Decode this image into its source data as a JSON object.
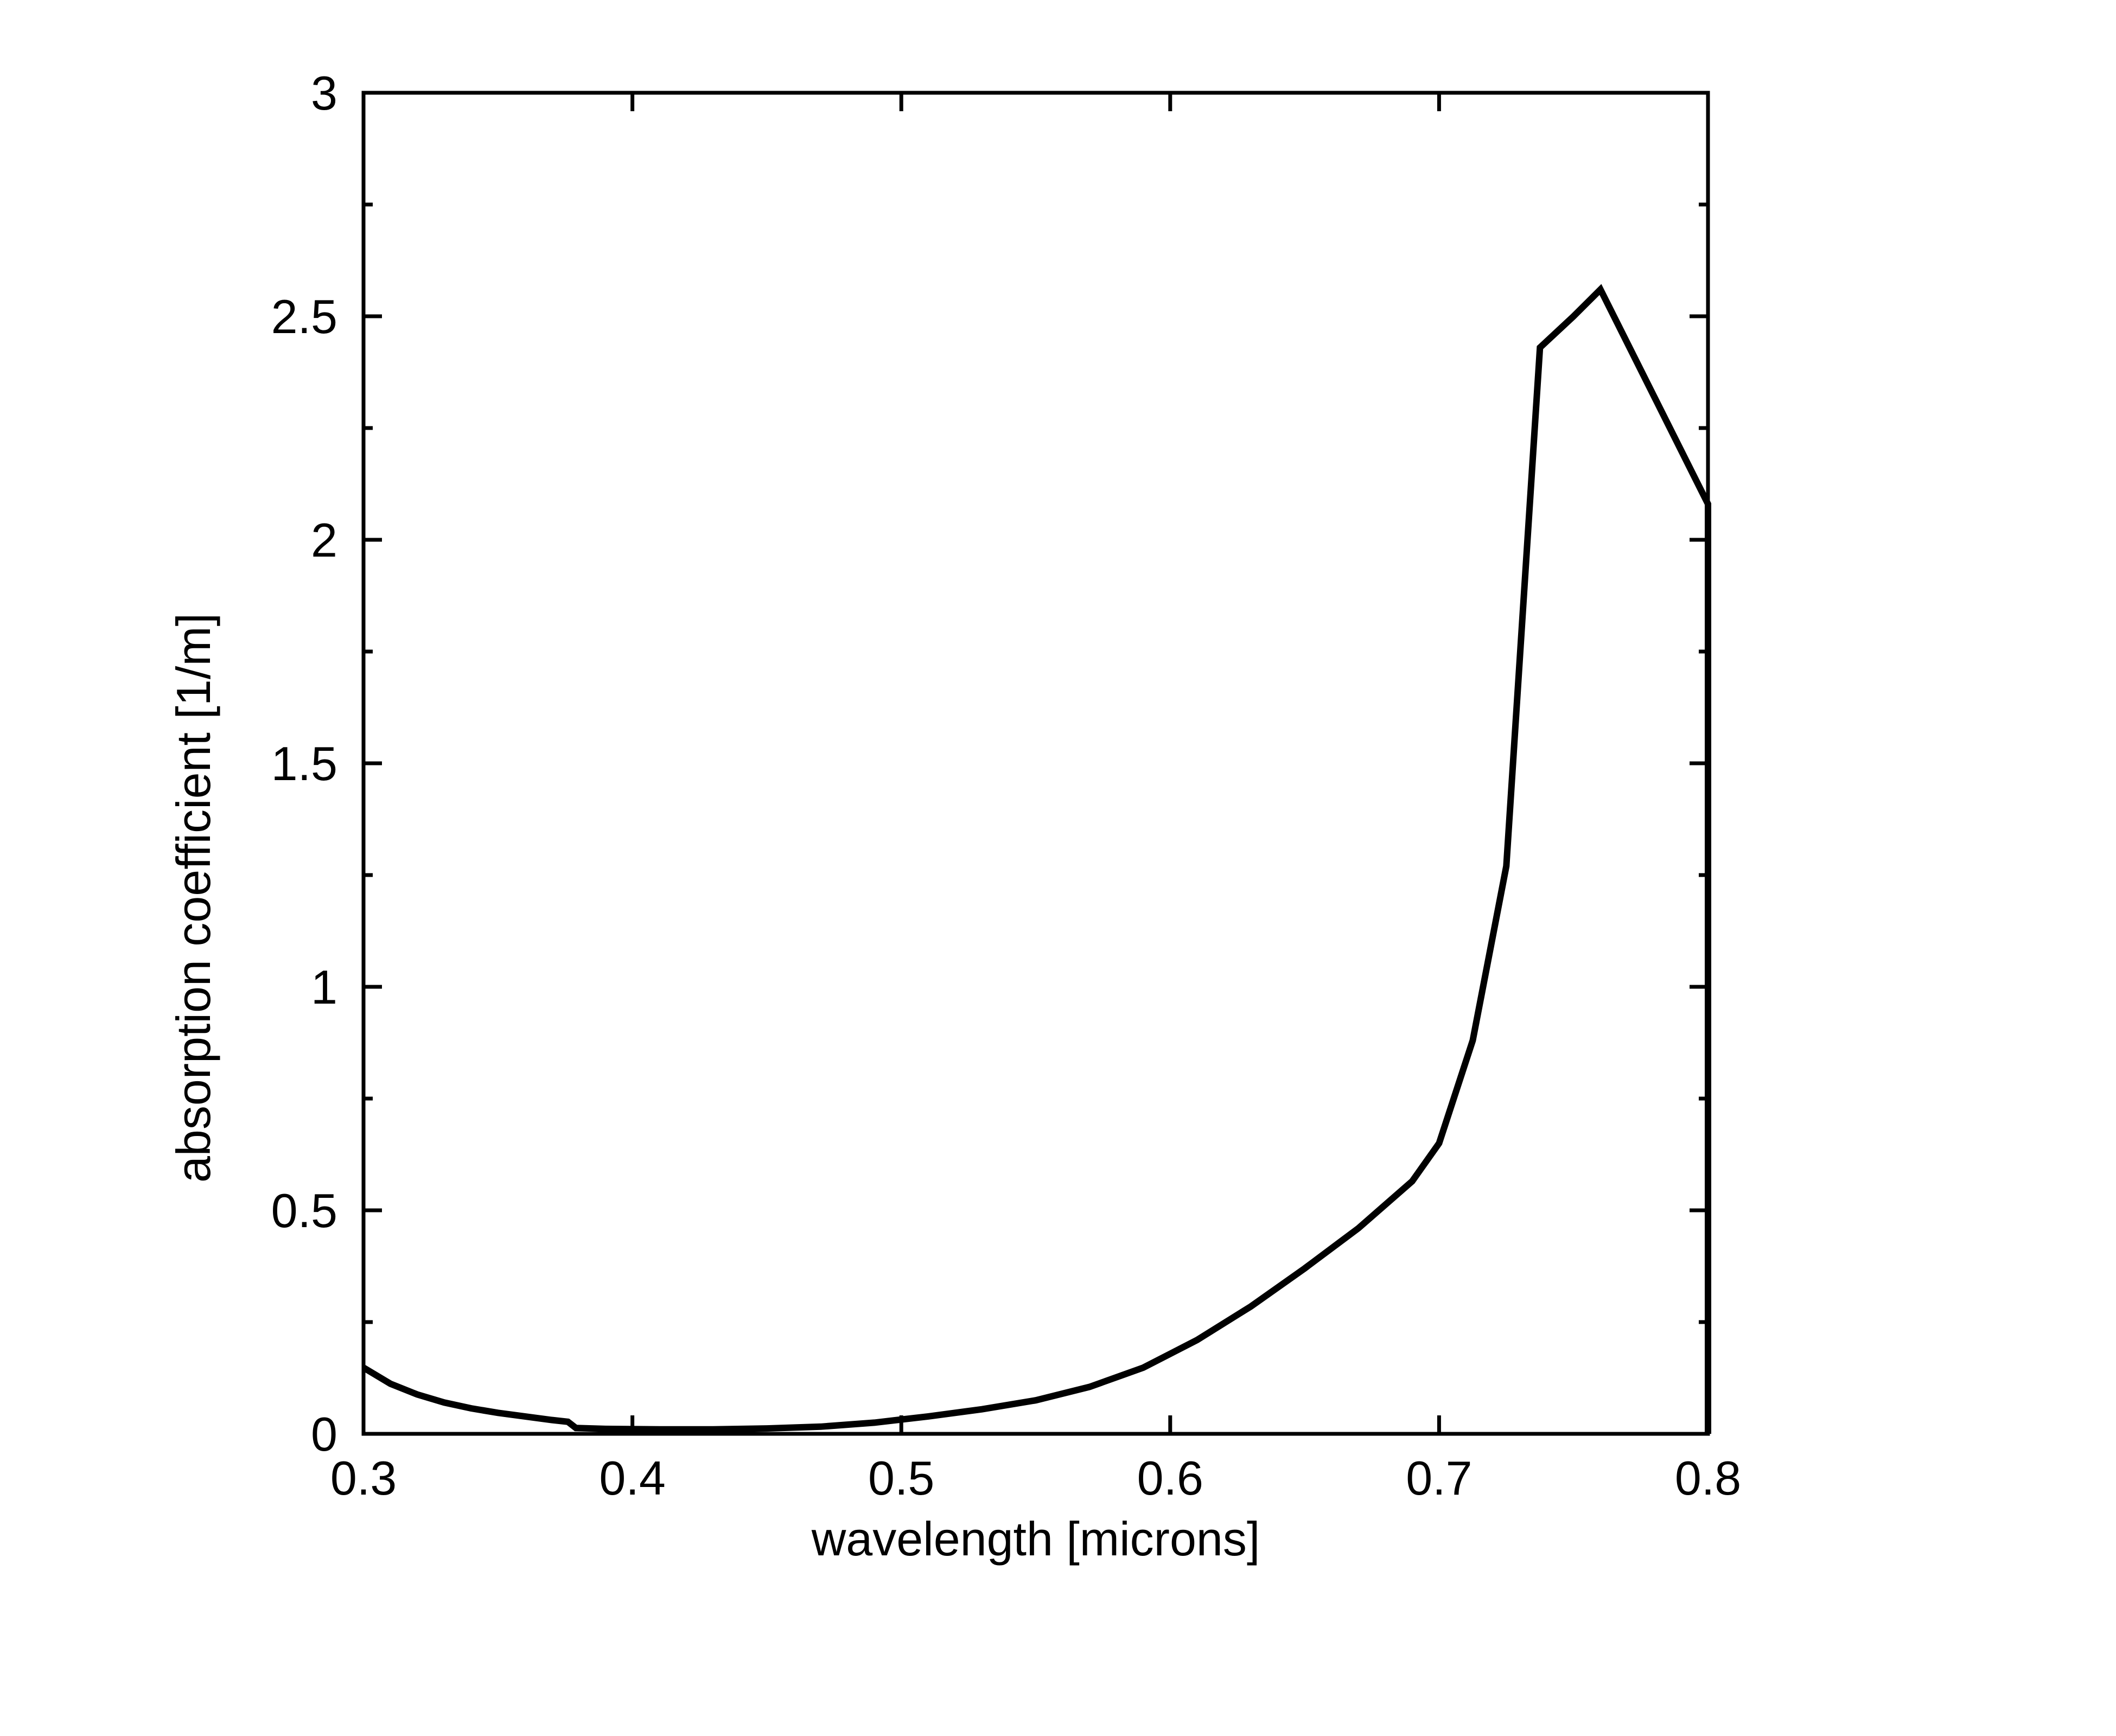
{
  "page": {
    "background": "#ffffff"
  },
  "chart_data": {
    "type": "line",
    "title": "",
    "xlabel": "wavelength [microns]",
    "ylabel": "absorption coefficient [1/m]",
    "xlim": [
      0.3,
      0.8
    ],
    "ylim": [
      0,
      3
    ],
    "x_ticks": [
      0.3,
      0.4,
      0.5,
      0.6,
      0.7,
      0.8
    ],
    "x_tick_labels": [
      "0.3",
      "0.4",
      "0.5",
      "0.6",
      "0.7",
      "0.8"
    ],
    "y_ticks": [
      0,
      0.5,
      1,
      1.5,
      2,
      2.5,
      3
    ],
    "y_tick_labels": [
      "0",
      "0.5",
      "1",
      "1.5",
      "2",
      "2.5",
      "3"
    ],
    "y_minor_ticks": [
      0.25,
      0.75,
      1.25,
      1.75,
      2.25,
      2.75
    ],
    "x_minor_ticks": [],
    "grid": false,
    "legend": null,
    "line_color": "#000000",
    "axis_color": "#000000",
    "background_color": "#ffffff",
    "series": [
      {
        "name": "absorption coefficient [1/m]",
        "points": [
          [
            0.3,
            0.148
          ],
          [
            0.31,
            0.112
          ],
          [
            0.32,
            0.088
          ],
          [
            0.33,
            0.07
          ],
          [
            0.34,
            0.057
          ],
          [
            0.35,
            0.047
          ],
          [
            0.36,
            0.039
          ],
          [
            0.37,
            0.031
          ],
          [
            0.376,
            0.027
          ],
          [
            0.379,
            0.013
          ],
          [
            0.39,
            0.011
          ],
          [
            0.41,
            0.01
          ],
          [
            0.43,
            0.01
          ],
          [
            0.45,
            0.012
          ],
          [
            0.47,
            0.016
          ],
          [
            0.49,
            0.025
          ],
          [
            0.51,
            0.039
          ],
          [
            0.53,
            0.055
          ],
          [
            0.55,
            0.075
          ],
          [
            0.57,
            0.105
          ],
          [
            0.59,
            0.148
          ],
          [
            0.61,
            0.21
          ],
          [
            0.63,
            0.285
          ],
          [
            0.65,
            0.37
          ],
          [
            0.67,
            0.46
          ],
          [
            0.69,
            0.565
          ],
          [
            0.7,
            0.65
          ],
          [
            0.7125,
            0.88
          ],
          [
            0.725,
            1.27
          ],
          [
            0.7375,
            2.43
          ],
          [
            0.75,
            2.5
          ],
          [
            0.76,
            2.56
          ],
          [
            0.78,
            2.32
          ],
          [
            0.8,
            2.08
          ],
          [
            0.8,
            0.0
          ]
        ]
      }
    ]
  }
}
